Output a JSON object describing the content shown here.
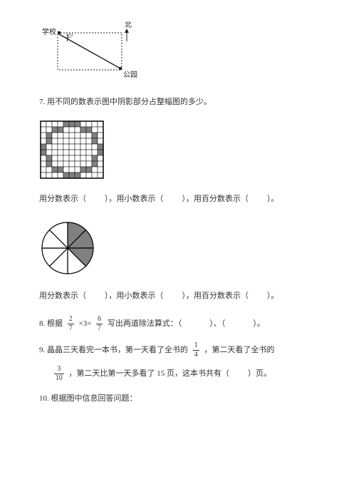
{
  "map_diagram": {
    "school_label": "学校",
    "north_label": "北",
    "park_label": "公园",
    "angle_label": "35°",
    "width": 120,
    "height": 80,
    "stroke_color": "#222222",
    "dash_pattern": "2 2",
    "font_size": 10
  },
  "q7": {
    "text": "7. 用不同的数表示图中阴影部分占整幅图的多少。",
    "grid": {
      "rows": 10,
      "cols": 11,
      "cell_size": 8,
      "outer_color": "#000000",
      "line_color": "#000000",
      "bg_color": "#ffffff",
      "shaded_color": "#808080",
      "shaded_cells": [
        [
          0,
          4
        ],
        [
          0,
          5
        ],
        [
          0,
          6
        ],
        [
          1,
          2
        ],
        [
          1,
          3
        ],
        [
          1,
          7
        ],
        [
          1,
          8
        ],
        [
          2,
          1
        ],
        [
          2,
          9
        ],
        [
          3,
          1
        ],
        [
          3,
          9
        ],
        [
          4,
          0
        ],
        [
          4,
          10
        ],
        [
          5,
          0
        ],
        [
          5,
          10
        ],
        [
          6,
          1
        ],
        [
          6,
          9
        ],
        [
          7,
          1
        ],
        [
          7,
          9
        ],
        [
          8,
          2
        ],
        [
          8,
          3
        ],
        [
          8,
          7
        ],
        [
          8,
          8
        ],
        [
          9,
          4
        ],
        [
          9,
          5
        ],
        [
          9,
          6
        ]
      ]
    },
    "line_frac": "用分数表示（",
    "line_mid1": "），用小数表示（",
    "line_mid2": "），用百分数表示（",
    "line_end": "）。",
    "pie": {
      "radius": 36,
      "slices": 8,
      "stroke_color": "#000000",
      "bg_color": "#ffffff",
      "shaded_color": "#808080",
      "shaded_slices": [
        0,
        1,
        2
      ]
    }
  },
  "q8": {
    "prefix": "8. 根据 ",
    "f1_num": "2",
    "f1_den": "7",
    "times": " ×3= ",
    "f2_num": "6",
    "f2_den": "7",
    "tail": " 写出两道除法算式：（",
    "blank_sep": "）、（",
    "end": "）。"
  },
  "q9": {
    "line1_a": "9. 晶晶三天看完一本书，第一天看了全书的 ",
    "f1_num": "1",
    "f1_den": "4",
    "line1_b": " ，第二天看了全书的",
    "f2_num": "3",
    "f2_den": "10",
    "line2": " ，第二天比第一天多看了 15 页，这本书共有（",
    "end": "）页。"
  },
  "q10": {
    "text": "10. 根据图中信息回答问题："
  }
}
